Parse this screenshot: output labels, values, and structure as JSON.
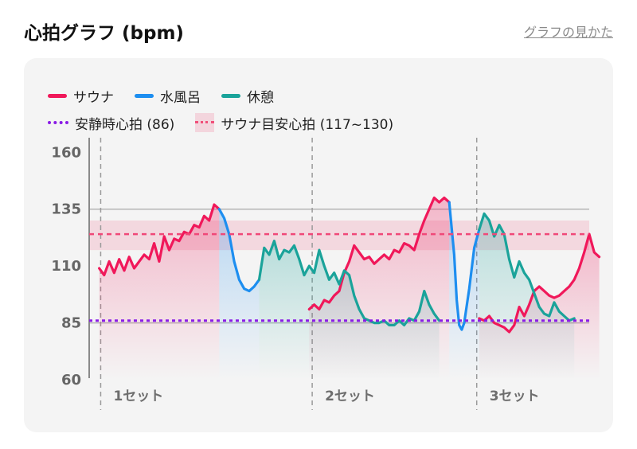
{
  "header": {
    "title": "心拍グラフ (bpm)",
    "help_link": "グラフの見かた"
  },
  "colors": {
    "sauna": "#f0185a",
    "water": "#1d8ef0",
    "rest": "#1aa39a",
    "resting_line": "#8a1ce6",
    "target_line": "#f04878"
  },
  "legend": {
    "sauna": "サウナ",
    "water": "水風呂",
    "rest": "休憩",
    "resting": "安静時心拍 (86)",
    "target": "サウナ目安心拍 (117~130)"
  },
  "chart_data": {
    "type": "line",
    "xlabel": "",
    "ylabel": "",
    "ylim": [
      60,
      165
    ],
    "xlim": [
      0,
      100
    ],
    "yticks": [
      60,
      85,
      110,
      135,
      160
    ],
    "grid": "horizontal at 135 and 85",
    "legend_placement": "top-left",
    "reference_lines": [
      {
        "name": "安静時心拍",
        "value": 86
      },
      {
        "name": "サウナ目安心拍",
        "range": [
          117,
          130
        ],
        "line": 124
      }
    ],
    "sets": [
      {
        "label": "1セット",
        "x": 2.3
      },
      {
        "label": "2セット",
        "x": 44.6
      },
      {
        "label": "3セット",
        "x": 77.5
      }
    ],
    "series": [
      {
        "name": "サウナ",
        "color": "#f0185a",
        "segments": [
          [
            [
              2,
              109
            ],
            [
              3,
              106
            ],
            [
              4,
              112
            ],
            [
              5,
              107
            ],
            [
              6,
              113
            ],
            [
              7,
              108
            ],
            [
              8,
              114
            ],
            [
              9,
              109
            ],
            [
              10,
              112
            ],
            [
              11,
              115
            ],
            [
              12,
              113
            ],
            [
              13,
              120
            ],
            [
              14,
              112
            ],
            [
              15,
              123
            ],
            [
              16,
              117
            ],
            [
              17,
              122
            ],
            [
              18,
              121
            ],
            [
              19,
              125
            ],
            [
              20,
              124
            ],
            [
              21,
              128
            ],
            [
              22,
              127
            ],
            [
              23,
              132
            ],
            [
              24,
              130
            ],
            [
              25,
              137
            ],
            [
              26,
              135
            ]
          ],
          [
            [
              44,
              91
            ],
            [
              45,
              93
            ],
            [
              46,
              91
            ],
            [
              47,
              95
            ],
            [
              48,
              94
            ],
            [
              49,
              97
            ],
            [
              50,
              99
            ],
            [
              51,
              107
            ],
            [
              52,
              112
            ],
            [
              53,
              119
            ],
            [
              54,
              116
            ],
            [
              55,
              113
            ],
            [
              56,
              114
            ],
            [
              57,
              111
            ],
            [
              58,
              113
            ],
            [
              59,
              115
            ],
            [
              60,
              113
            ],
            [
              61,
              117
            ],
            [
              62,
              116
            ],
            [
              63,
              120
            ],
            [
              64,
              119
            ],
            [
              65,
              117
            ],
            [
              66,
              124
            ],
            [
              67,
              130
            ],
            [
              68,
              135
            ],
            [
              69,
              140
            ],
            [
              70,
              138
            ],
            [
              71,
              140
            ],
            [
              72,
              138
            ]
          ],
          [
            [
              78,
              87
            ],
            [
              79,
              86
            ],
            [
              80,
              88
            ],
            [
              81,
              85
            ],
            [
              82,
              84
            ],
            [
              83,
              83
            ],
            [
              84,
              81
            ],
            [
              85,
              84
            ],
            [
              86,
              92
            ],
            [
              87,
              88
            ],
            [
              88,
              93
            ],
            [
              89,
              99
            ],
            [
              90,
              101
            ],
            [
              91,
              99
            ],
            [
              92,
              97
            ],
            [
              93,
              96
            ],
            [
              94,
              97
            ],
            [
              95,
              99
            ],
            [
              96,
              101
            ],
            [
              97,
              104
            ],
            [
              98,
              109
            ],
            [
              99,
              116
            ],
            [
              100,
              124
            ],
            [
              101,
              116
            ],
            [
              102,
              114
            ]
          ]
        ]
      },
      {
        "name": "水風呂",
        "color": "#1d8ef0",
        "segments": [
          [
            [
              26,
              135
            ],
            [
              27,
              131
            ],
            [
              28,
              124
            ],
            [
              29,
              112
            ],
            [
              30,
              104
            ],
            [
              31,
              100
            ],
            [
              32,
              99
            ],
            [
              33,
              101
            ],
            [
              34,
              104
            ]
          ],
          [
            [
              72,
              138
            ],
            [
              73,
              115
            ],
            [
              73.5,
              95
            ],
            [
              74,
              84
            ],
            [
              74.5,
              82
            ],
            [
              75,
              85
            ],
            [
              76,
              100
            ],
            [
              77,
              118
            ],
            [
              78,
              126
            ]
          ]
        ]
      },
      {
        "name": "休憩",
        "color": "#1aa39a",
        "segments": [
          [
            [
              34,
              104
            ],
            [
              35,
              118
            ],
            [
              36,
              115
            ],
            [
              37,
              121
            ],
            [
              38,
              113
            ],
            [
              39,
              117
            ],
            [
              40,
              116
            ],
            [
              41,
              119
            ],
            [
              42,
              113
            ],
            [
              43,
              106
            ],
            [
              44,
              110
            ],
            [
              45,
              107
            ],
            [
              46,
              117
            ],
            [
              47,
              110
            ],
            [
              48,
              104
            ],
            [
              49,
              107
            ],
            [
              50,
              102
            ],
            [
              51,
              108
            ],
            [
              52,
              106
            ],
            [
              53,
              97
            ],
            [
              54,
              91
            ],
            [
              55,
              87
            ],
            [
              56,
              86
            ],
            [
              57,
              85
            ],
            [
              58,
              85
            ],
            [
              59,
              86
            ],
            [
              60,
              84
            ],
            [
              61,
              84
            ],
            [
              62,
              86
            ],
            [
              63,
              84
            ],
            [
              64,
              87
            ],
            [
              65,
              86
            ],
            [
              66,
              90
            ],
            [
              67,
              99
            ],
            [
              68,
              93
            ],
            [
              69,
              89
            ],
            [
              70,
              86
            ]
          ],
          [
            [
              78,
              126
            ],
            [
              79,
              133
            ],
            [
              80,
              130
            ],
            [
              81,
              123
            ],
            [
              82,
              128
            ],
            [
              83,
              124
            ],
            [
              84,
              113
            ],
            [
              85,
              105
            ],
            [
              86,
              112
            ],
            [
              87,
              107
            ],
            [
              88,
              104
            ],
            [
              89,
              98
            ],
            [
              90,
              92
            ],
            [
              91,
              89
            ],
            [
              92,
              88
            ],
            [
              93,
              94
            ],
            [
              94,
              90
            ],
            [
              95,
              88
            ],
            [
              96,
              86
            ],
            [
              97,
              87
            ]
          ]
        ]
      }
    ]
  }
}
